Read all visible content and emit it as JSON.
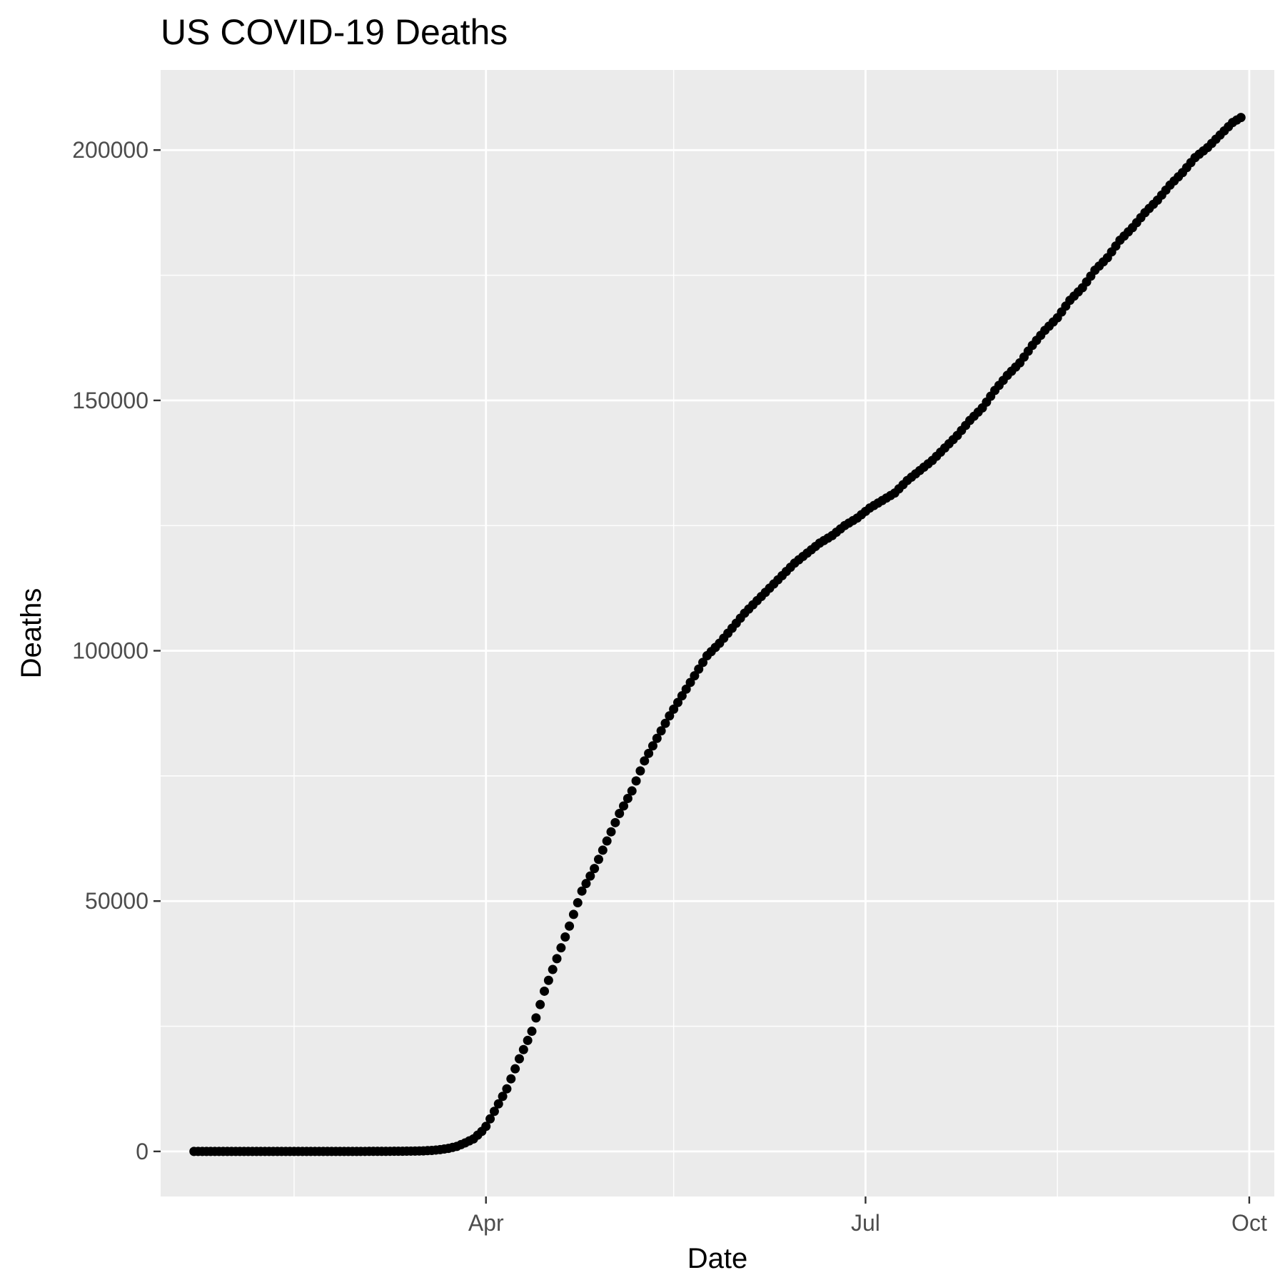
{
  "chart_data": {
    "type": "scatter",
    "title": "US COVID-19 Deaths",
    "xlabel": "Date",
    "ylabel": "Deaths",
    "x_axis_type": "date",
    "xlim": [
      "2020-01-14",
      "2020-10-07"
    ],
    "ylim": [
      -9000,
      216000
    ],
    "x_ticks": [
      {
        "date": "2020-04-01",
        "label": "Apr"
      },
      {
        "date": "2020-07-01",
        "label": "Jul"
      },
      {
        "date": "2020-10-01",
        "label": "Oct"
      }
    ],
    "x_minor_ticks": [
      "2020-02-15",
      "2020-05-16",
      "2020-08-16"
    ],
    "y_ticks": [
      0,
      50000,
      100000,
      150000,
      200000
    ],
    "y_tick_labels": [
      "0",
      "50000",
      "100000",
      "150000",
      "200000"
    ],
    "y_minor_ticks": [
      25000,
      75000,
      125000,
      175000
    ],
    "grid": true,
    "legend": "none",
    "panel_background": "#ebebeb",
    "point_color": "#000000",
    "series": [
      {
        "points": [
          [
            "2020-01-22",
            0
          ],
          [
            "2020-02-15",
            0
          ],
          [
            "2020-03-01",
            1
          ],
          [
            "2020-03-08",
            22
          ],
          [
            "2020-03-12",
            40
          ],
          [
            "2020-03-15",
            70
          ],
          [
            "2020-03-17",
            110
          ],
          [
            "2020-03-19",
            200
          ],
          [
            "2020-03-21",
            350
          ],
          [
            "2020-03-23",
            600
          ],
          [
            "2020-03-25",
            1000
          ],
          [
            "2020-03-27",
            1700
          ],
          [
            "2020-03-29",
            2500
          ],
          [
            "2020-03-31",
            4000
          ],
          [
            "2020-04-01",
            5000
          ],
          [
            "2020-04-03",
            8000
          ],
          [
            "2020-04-06",
            12500
          ],
          [
            "2020-04-09",
            18500
          ],
          [
            "2020-04-12",
            24000
          ],
          [
            "2020-04-15",
            32000
          ],
          [
            "2020-04-18",
            38500
          ],
          [
            "2020-04-21",
            45000
          ],
          [
            "2020-04-24",
            52000
          ],
          [
            "2020-04-27",
            56500
          ],
          [
            "2020-04-30",
            62000
          ],
          [
            "2020-05-03",
            67500
          ],
          [
            "2020-05-06",
            72000
          ],
          [
            "2020-05-09",
            78000
          ],
          [
            "2020-05-12",
            82500
          ],
          [
            "2020-05-15",
            87000
          ],
          [
            "2020-05-18",
            91000
          ],
          [
            "2020-05-21",
            95000
          ],
          [
            "2020-05-24",
            99000
          ],
          [
            "2020-05-27",
            101500
          ],
          [
            "2020-05-30",
            104500
          ],
          [
            "2020-06-02",
            107500
          ],
          [
            "2020-06-05",
            110000
          ],
          [
            "2020-06-08",
            112500
          ],
          [
            "2020-06-11",
            115000
          ],
          [
            "2020-06-14",
            117500
          ],
          [
            "2020-06-17",
            119500
          ],
          [
            "2020-06-20",
            121500
          ],
          [
            "2020-06-23",
            123000
          ],
          [
            "2020-06-26",
            125000
          ],
          [
            "2020-06-29",
            126500
          ],
          [
            "2020-07-02",
            128500
          ],
          [
            "2020-07-05",
            130000
          ],
          [
            "2020-07-08",
            131500
          ],
          [
            "2020-07-11",
            134000
          ],
          [
            "2020-07-14",
            136000
          ],
          [
            "2020-07-17",
            138000
          ],
          [
            "2020-07-20",
            140500
          ],
          [
            "2020-07-23",
            143000
          ],
          [
            "2020-07-26",
            146000
          ],
          [
            "2020-07-29",
            148500
          ],
          [
            "2020-08-01",
            152000
          ],
          [
            "2020-08-04",
            155000
          ],
          [
            "2020-08-07",
            157500
          ],
          [
            "2020-08-10",
            161000
          ],
          [
            "2020-08-13",
            164000
          ],
          [
            "2020-08-16",
            166500
          ],
          [
            "2020-08-19",
            170000
          ],
          [
            "2020-08-22",
            172500
          ],
          [
            "2020-08-25",
            176000
          ],
          [
            "2020-08-28",
            178500
          ],
          [
            "2020-08-31",
            182000
          ],
          [
            "2020-09-03",
            184500
          ],
          [
            "2020-09-06",
            187500
          ],
          [
            "2020-09-09",
            190000
          ],
          [
            "2020-09-12",
            193000
          ],
          [
            "2020-09-15",
            195500
          ],
          [
            "2020-09-18",
            198500
          ],
          [
            "2020-09-21",
            200500
          ],
          [
            "2020-09-24",
            203000
          ],
          [
            "2020-09-27",
            205500
          ],
          [
            "2020-09-29",
            206500
          ]
        ]
      }
    ]
  }
}
